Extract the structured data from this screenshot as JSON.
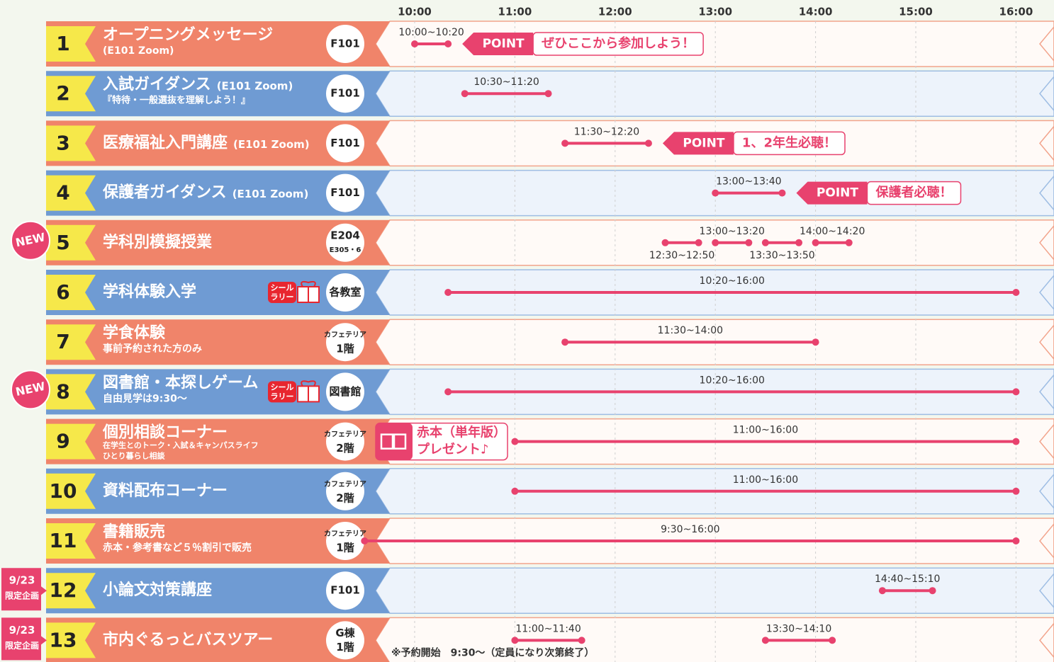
{
  "ticks": [
    "10:00",
    "11:00",
    "12:00",
    "13:00",
    "14:00",
    "15:00",
    "16:00"
  ],
  "rows": [
    {
      "number": "1",
      "title": "オープニングメッセージ",
      "subtitle": [
        "(E101 Zoom)"
      ],
      "venue": [
        "F101"
      ],
      "sessions": [
        "10:00~10:20"
      ],
      "point": {
        "tag": "POINT",
        "text": "ぜひここから参加しよう！"
      }
    },
    {
      "number": "2",
      "title": "入試ガイダンス",
      "title_note": "(E101 Zoom)",
      "subtitle": [
        "『特待・一般選抜を理解しよう！』"
      ],
      "venue": [
        "F101"
      ],
      "sessions": [
        "10:30~11:20"
      ]
    },
    {
      "number": "3",
      "title": "医療福祉入門講座",
      "title_note": "(E101 Zoom)",
      "venue": [
        "F101"
      ],
      "sessions": [
        "11:30~12:20"
      ],
      "point": {
        "tag": "POINT",
        "text": "1、2年生必聴！"
      }
    },
    {
      "number": "4",
      "title": "保護者ガイダンス",
      "title_note": "(E101 Zoom)",
      "venue": [
        "F101"
      ],
      "sessions": [
        "13:00~13:40"
      ],
      "point": {
        "tag": "POINT",
        "text": "保護者必聴！"
      }
    },
    {
      "badge": [
        "NEW"
      ],
      "number": "5",
      "title": "学科別模擬授業",
      "venue": [
        "E204",
        "E305・6"
      ],
      "sessions": [
        "12:30~12:50",
        "13:00~13:20",
        "13:30~13:50",
        "14:00~14:20"
      ]
    },
    {
      "number": "6",
      "title": "学科体験入学",
      "sticker": [
        "シール",
        "ラリー"
      ],
      "venue": [
        "各教室"
      ],
      "sessions": [
        "10:20~16:00"
      ]
    },
    {
      "number": "7",
      "title": "学食体験",
      "subtitle": [
        "事前予約された方のみ"
      ],
      "venue": [
        "カフェテリア",
        "1階"
      ],
      "sessions": [
        "11:30~14:00"
      ]
    },
    {
      "badge": [
        "NEW"
      ],
      "number": "8",
      "title": "図書館・本探しゲーム",
      "subtitle": [
        "自由見学は9:30～"
      ],
      "sticker": [
        "シール",
        "ラリー"
      ],
      "venue": [
        "図書館"
      ],
      "sessions": [
        "10:20~16:00"
      ]
    },
    {
      "number": "9",
      "title": "個別相談コーナー",
      "subtitle": [
        "在学生とのトーク・入試＆キャンパスライフ",
        "ひとり暮らし相談"
      ],
      "venue": [
        "カフェテリア",
        "2階"
      ],
      "sessions": [
        "11:00~16:00"
      ],
      "gift": [
        "赤本（単年版）",
        "プレゼント♪"
      ]
    },
    {
      "number": "10",
      "title": "資料配布コーナー",
      "venue": [
        "カフェテリア",
        "2階"
      ],
      "sessions": [
        "11:00~16:00"
      ]
    },
    {
      "number": "11",
      "title": "書籍販売",
      "subtitle": [
        "赤本・参考書など５％割引で販売"
      ],
      "venue": [
        "カフェテリア",
        "1階"
      ],
      "sessions": [
        "9:30~16:00"
      ]
    },
    {
      "badge": [
        "9/23",
        "限定企画"
      ],
      "number": "12",
      "title": "小論文対策講座",
      "venue": [
        "F101"
      ],
      "sessions": [
        "14:40~15:10"
      ]
    },
    {
      "badge": [
        "9/23",
        "限定企画"
      ],
      "number": "13",
      "title": "市内ぐるっとバスツアー",
      "venue": [
        "G棟",
        "1階"
      ],
      "sessions": [
        "11:00~11:40",
        "13:30~14:10"
      ],
      "note": "※予約開始　9:30～（定員になり次第終了）"
    }
  ]
}
